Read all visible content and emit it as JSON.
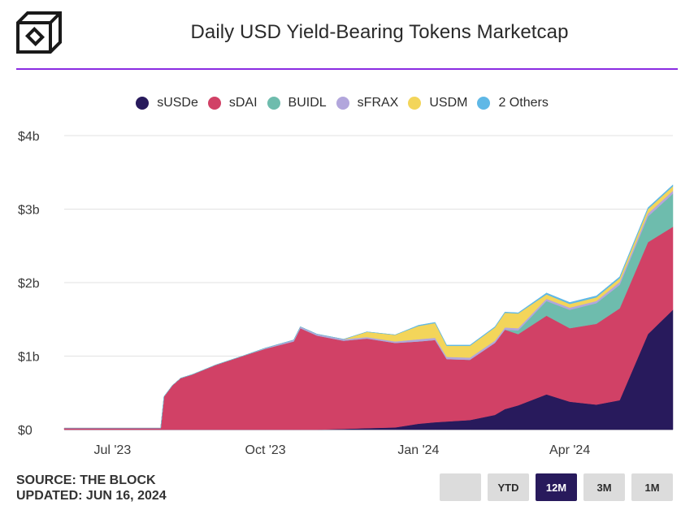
{
  "header": {
    "title": "Daily USD Yield-Bearing Tokens Marketcap",
    "logo_icon": "cube-logo-icon"
  },
  "colors": {
    "accent": "#8a2be2",
    "sUSDe": "#281a5c",
    "sDAI": "#d14166",
    "BUIDL": "#6ebcad",
    "sFRAX": "#b2a6dc",
    "USDM": "#f3d55a",
    "2 Others": "#5fb8e6",
    "button_active": "#281a5c",
    "button_inactive": "#dcdcdc"
  },
  "footer": {
    "source": "SOURCE: THE BLOCK",
    "updated": "UPDATED: JUN 16, 2024"
  },
  "range_buttons": [
    {
      "label": "",
      "active": false
    },
    {
      "label": "YTD",
      "active": false
    },
    {
      "label": "12M",
      "active": true
    },
    {
      "label": "3M",
      "active": false
    },
    {
      "label": "1M",
      "active": false
    }
  ],
  "chart_data": {
    "type": "area",
    "stacked": true,
    "title": "Daily USD Yield-Bearing Tokens Marketcap",
    "xlabel": "",
    "ylabel": "",
    "units": "USD billions",
    "ylim": [
      0,
      4
    ],
    "yticks": [
      0,
      1,
      2,
      3,
      4
    ],
    "ytick_labels": [
      "$0",
      "$1b",
      "$2b",
      "$3b",
      "$4b"
    ],
    "xticks": [
      "2023-07-15",
      "2023-10-15",
      "2024-01-15",
      "2024-04-15"
    ],
    "xtick_labels": [
      "Jul '23",
      "Oct '23",
      "Jan '24",
      "Apr '24"
    ],
    "grid": true,
    "legend_position": "top-center",
    "x": [
      "2023-06-16",
      "2023-07-01",
      "2023-07-15",
      "2023-08-01",
      "2023-08-13",
      "2023-08-15",
      "2023-08-20",
      "2023-08-25",
      "2023-09-01",
      "2023-09-15",
      "2023-10-01",
      "2023-10-15",
      "2023-11-01",
      "2023-11-05",
      "2023-11-15",
      "2023-12-01",
      "2023-12-15",
      "2024-01-01",
      "2024-01-15",
      "2024-01-25",
      "2024-02-01",
      "2024-02-15",
      "2024-03-01",
      "2024-03-07",
      "2024-03-15",
      "2024-04-01",
      "2024-04-15",
      "2024-05-01",
      "2024-05-15",
      "2024-06-01",
      "2024-06-16"
    ],
    "series": [
      {
        "name": "sUSDe",
        "values": [
          0,
          0,
          0,
          0,
          0,
          0,
          0,
          0,
          0,
          0,
          0,
          0,
          0,
          0,
          0,
          0.01,
          0.02,
          0.03,
          0.08,
          0.1,
          0.11,
          0.13,
          0.2,
          0.28,
          0.33,
          0.48,
          0.38,
          0.34,
          0.4,
          1.3,
          1.63
        ]
      },
      {
        "name": "sDAI",
        "values": [
          0.02,
          0.02,
          0.02,
          0.02,
          0.02,
          0.45,
          0.6,
          0.7,
          0.75,
          0.88,
          1.0,
          1.1,
          1.2,
          1.38,
          1.28,
          1.2,
          1.22,
          1.15,
          1.12,
          1.12,
          0.85,
          0.82,
          0.98,
          1.08,
          0.97,
          1.07,
          1.0,
          1.1,
          1.25,
          1.25,
          1.13
        ]
      },
      {
        "name": "BUIDL",
        "values": [
          0,
          0,
          0,
          0,
          0,
          0,
          0,
          0,
          0,
          0,
          0,
          0,
          0,
          0,
          0,
          0,
          0,
          0,
          0,
          0,
          0,
          0,
          0,
          0,
          0.05,
          0.2,
          0.25,
          0.28,
          0.32,
          0.35,
          0.45
        ]
      },
      {
        "name": "sFRAX",
        "values": [
          0,
          0,
          0,
          0,
          0,
          0,
          0,
          0,
          0,
          0,
          0,
          0.01,
          0.02,
          0.02,
          0.02,
          0.02,
          0.02,
          0.02,
          0.03,
          0.03,
          0.03,
          0.03,
          0.03,
          0.03,
          0.03,
          0.03,
          0.03,
          0.03,
          0.04,
          0.04,
          0.04
        ]
      },
      {
        "name": "USDM",
        "values": [
          0,
          0,
          0,
          0,
          0,
          0,
          0,
          0,
          0,
          0,
          0,
          0,
          0,
          0,
          0,
          0,
          0.07,
          0.09,
          0.18,
          0.2,
          0.15,
          0.16,
          0.18,
          0.2,
          0.2,
          0.06,
          0.05,
          0.05,
          0.05,
          0.06,
          0.06
        ]
      },
      {
        "name": "2 Others",
        "values": [
          0,
          0,
          0,
          0,
          0,
          0,
          0,
          0,
          0,
          0,
          0,
          0,
          0,
          0,
          0,
          0,
          0,
          0,
          0.01,
          0.01,
          0.01,
          0.01,
          0.01,
          0.01,
          0.01,
          0.02,
          0.02,
          0.02,
          0.02,
          0.02,
          0.02
        ]
      }
    ]
  }
}
